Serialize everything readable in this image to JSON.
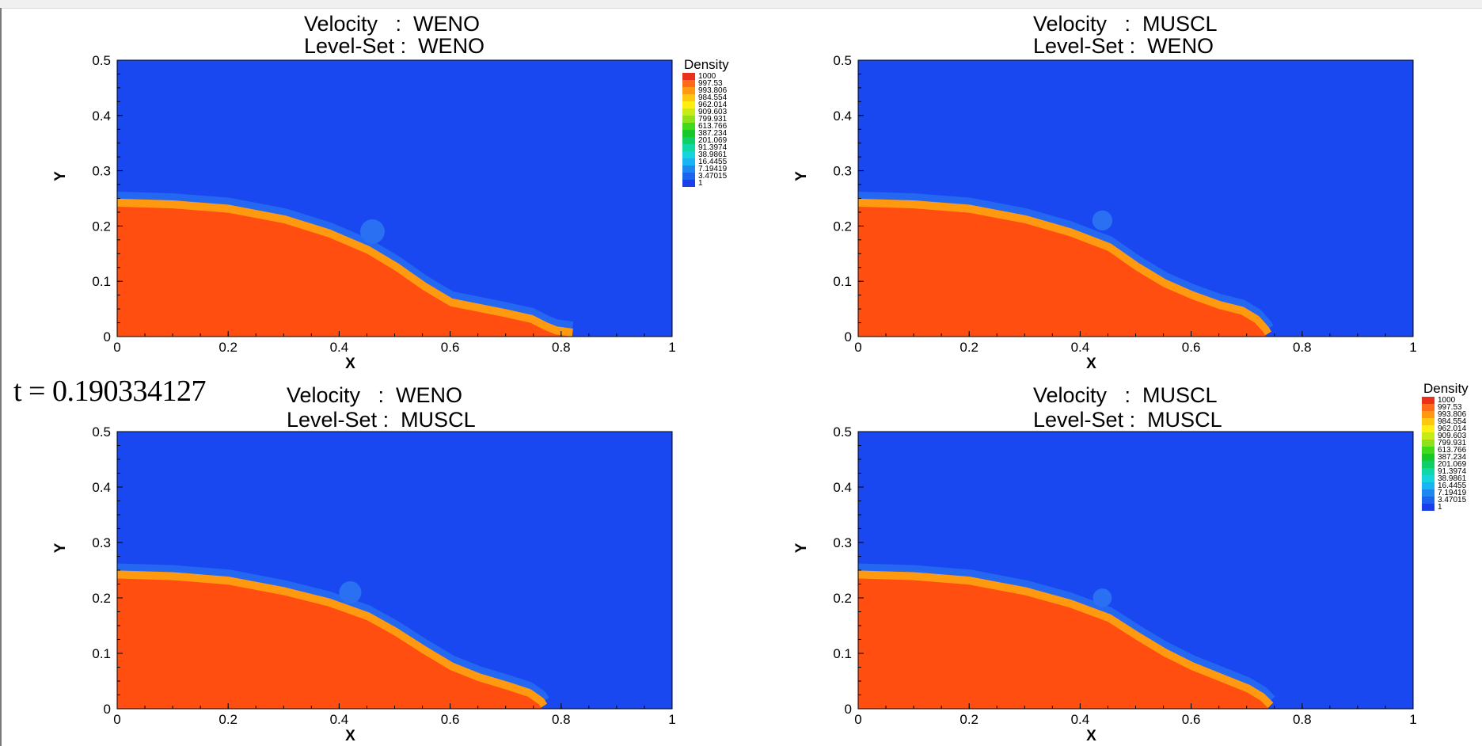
{
  "timestamp": "t = 0.190334127",
  "colors": {
    "air": "#1a48f0",
    "water": "#ff4e0f",
    "transition": [
      "#ff4e0f",
      "#ff9a10",
      "#ffe010",
      "#8fe21a",
      "#18d21c",
      "#0fd8a8",
      "#19c8f4",
      "#1e88f2",
      "#1a48f0"
    ]
  },
  "legend": {
    "title": "Density",
    "levels": [
      "1000",
      "997.53",
      "993.806",
      "984.554",
      "962.014",
      "909.603",
      "799.931",
      "613.766",
      "387.234",
      "201.069",
      "91.3974",
      "38.9861",
      "16.4455",
      "7.19419",
      "3.47015",
      "1"
    ],
    "colors": [
      "#e8301a",
      "#ff6a18",
      "#ff9a10",
      "#ffc810",
      "#ffee12",
      "#c8ea16",
      "#8fe21a",
      "#40da1c",
      "#18c82a",
      "#0fcf68",
      "#0fd8a8",
      "#16d4dc",
      "#19b4f4",
      "#1e88f2",
      "#1c64f0",
      "#1a3ee8"
    ]
  },
  "chart_data": [
    {
      "type": "heatmap",
      "title": [
        "Velocity   :  WENO",
        "Level-Set :  WENO"
      ],
      "xlabel": "X",
      "ylabel": "Y",
      "xlim": [
        0,
        1
      ],
      "ylim": [
        0,
        0.5
      ],
      "xticks": [
        "0",
        "0.2",
        "0.4",
        "0.6",
        "0.8",
        "1"
      ],
      "yticks": [
        "0",
        "0.1",
        "0.2",
        "0.3",
        "0.4",
        "0.5"
      ],
      "interface": [
        [
          0,
          0.235
        ],
        [
          0.1,
          0.232
        ],
        [
          0.2,
          0.224
        ],
        [
          0.3,
          0.205
        ],
        [
          0.38,
          0.18
        ],
        [
          0.45,
          0.15
        ],
        [
          0.5,
          0.12
        ],
        [
          0.55,
          0.085
        ],
        [
          0.6,
          0.055
        ],
        [
          0.65,
          0.045
        ],
        [
          0.7,
          0.035
        ],
        [
          0.745,
          0.025
        ],
        [
          0.77,
          0.012
        ],
        [
          0.79,
          0.004
        ],
        [
          0.82,
          0
        ]
      ],
      "bump": {
        "x": 0.46,
        "y": 0.19,
        "r": 0.022
      }
    },
    {
      "type": "heatmap",
      "title": [
        "Velocity   :  MUSCL",
        "Level-Set :  WENO"
      ],
      "xlabel": "X",
      "ylabel": "Y",
      "xlim": [
        0,
        1
      ],
      "ylim": [
        0,
        0.5
      ],
      "xticks": [
        "0",
        "0.2",
        "0.4",
        "0.6",
        "0.8",
        "1"
      ],
      "yticks": [
        "0",
        "0.1",
        "0.2",
        "0.3",
        "0.4",
        "0.5"
      ],
      "interface": [
        [
          0,
          0.235
        ],
        [
          0.1,
          0.232
        ],
        [
          0.2,
          0.224
        ],
        [
          0.3,
          0.205
        ],
        [
          0.38,
          0.182
        ],
        [
          0.45,
          0.155
        ],
        [
          0.5,
          0.12
        ],
        [
          0.55,
          0.09
        ],
        [
          0.6,
          0.068
        ],
        [
          0.65,
          0.05
        ],
        [
          0.69,
          0.04
        ],
        [
          0.715,
          0.025
        ],
        [
          0.73,
          0.008
        ],
        [
          0.735,
          0
        ]
      ],
      "bump": {
        "x": 0.44,
        "y": 0.21,
        "r": 0.018
      }
    },
    {
      "type": "heatmap",
      "title": [
        "Velocity   :  WENO",
        "Level-Set :  MUSCL"
      ],
      "xlabel": "X",
      "ylabel": "Y",
      "xlim": [
        0,
        1
      ],
      "ylim": [
        0,
        0.5
      ],
      "xticks": [
        "0",
        "0.2",
        "0.4",
        "0.6",
        "0.8",
        "1"
      ],
      "yticks": [
        "0",
        "0.1",
        "0.2",
        "0.3",
        "0.4",
        "0.5"
      ],
      "interface": [
        [
          0,
          0.235
        ],
        [
          0.1,
          0.232
        ],
        [
          0.2,
          0.224
        ],
        [
          0.3,
          0.205
        ],
        [
          0.38,
          0.185
        ],
        [
          0.45,
          0.16
        ],
        [
          0.5,
          0.132
        ],
        [
          0.55,
          0.1
        ],
        [
          0.6,
          0.07
        ],
        [
          0.65,
          0.05
        ],
        [
          0.7,
          0.035
        ],
        [
          0.74,
          0.022
        ],
        [
          0.76,
          0.008
        ],
        [
          0.765,
          0
        ]
      ],
      "bump": {
        "x": 0.42,
        "y": 0.21,
        "r": 0.02
      }
    },
    {
      "type": "heatmap",
      "title": [
        "Velocity   :  MUSCL",
        "Level-Set :  MUSCL"
      ],
      "xlabel": "X",
      "ylabel": "Y",
      "xlim": [
        0,
        1
      ],
      "ylim": [
        0,
        0.5
      ],
      "xticks": [
        "0",
        "0.2",
        "0.4",
        "0.6",
        "0.8",
        "1"
      ],
      "yticks": [
        "0",
        "0.1",
        "0.2",
        "0.3",
        "0.4",
        "0.5"
      ],
      "interface": [
        [
          0,
          0.235
        ],
        [
          0.1,
          0.232
        ],
        [
          0.2,
          0.224
        ],
        [
          0.3,
          0.205
        ],
        [
          0.38,
          0.183
        ],
        [
          0.45,
          0.157
        ],
        [
          0.5,
          0.125
        ],
        [
          0.55,
          0.095
        ],
        [
          0.6,
          0.07
        ],
        [
          0.65,
          0.05
        ],
        [
          0.7,
          0.03
        ],
        [
          0.725,
          0.015
        ],
        [
          0.74,
          0
        ]
      ],
      "bump": {
        "x": 0.44,
        "y": 0.2,
        "r": 0.017
      }
    }
  ]
}
